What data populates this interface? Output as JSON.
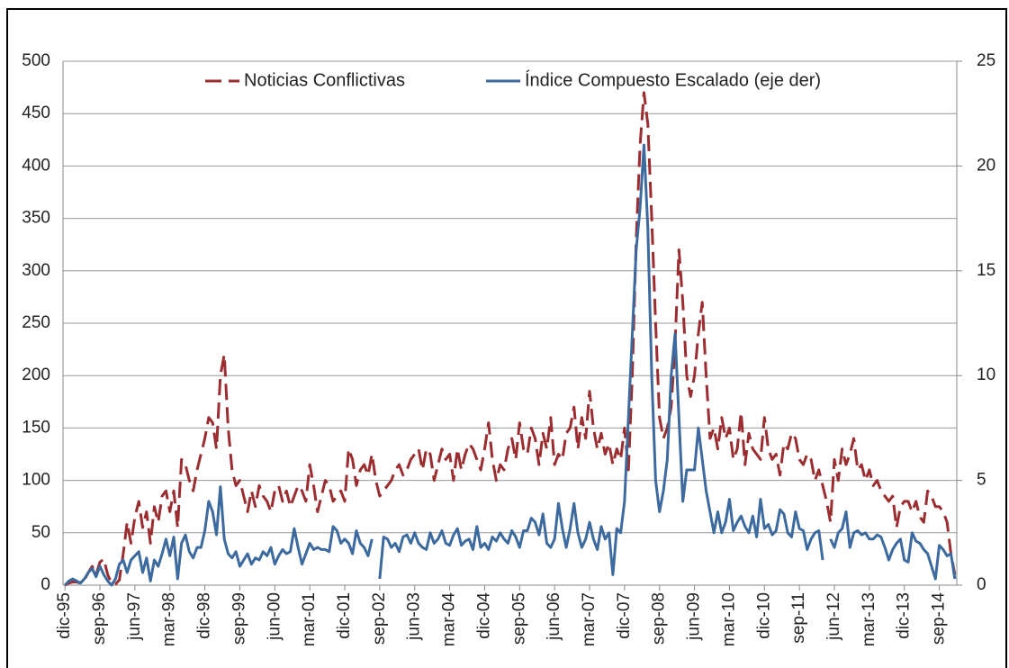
{
  "chart_data": {
    "type": "line",
    "categories": [
      "dic-95",
      null,
      null,
      null,
      null,
      null,
      null,
      null,
      null,
      "sep-96",
      null,
      null,
      null,
      null,
      null,
      null,
      null,
      null,
      "jun-97",
      null,
      null,
      null,
      null,
      null,
      null,
      null,
      null,
      "mar-98",
      null,
      null,
      null,
      null,
      null,
      null,
      null,
      null,
      "dic-98",
      null,
      null,
      null,
      null,
      null,
      null,
      null,
      null,
      "sep-99",
      null,
      null,
      null,
      null,
      null,
      null,
      null,
      null,
      "jun-00",
      null,
      null,
      null,
      null,
      null,
      null,
      null,
      null,
      "mar-01",
      null,
      null,
      null,
      null,
      null,
      null,
      null,
      null,
      "dic-01",
      null,
      null,
      null,
      null,
      null,
      null,
      null,
      null,
      "sep-02",
      null,
      null,
      null,
      null,
      null,
      null,
      null,
      null,
      "jun-03",
      null,
      null,
      null,
      null,
      null,
      null,
      null,
      null,
      "mar-04",
      null,
      null,
      null,
      null,
      null,
      null,
      null,
      null,
      "dic-04",
      null,
      null,
      null,
      null,
      null,
      null,
      null,
      null,
      "sep-05",
      null,
      null,
      null,
      null,
      null,
      null,
      null,
      null,
      "jun-06",
      null,
      null,
      null,
      null,
      null,
      null,
      null,
      null,
      "mar-07",
      null,
      null,
      null,
      null,
      null,
      null,
      null,
      null,
      "dic-07",
      null,
      null,
      null,
      null,
      null,
      null,
      null,
      null,
      "sep-08",
      null,
      null,
      null,
      null,
      null,
      null,
      null,
      null,
      "jun-09",
      null,
      null,
      null,
      null,
      null,
      null,
      null,
      null,
      "mar-10",
      null,
      null,
      null,
      null,
      null,
      null,
      null,
      null,
      "dic-10",
      null,
      null,
      null,
      null,
      null,
      null,
      null,
      null,
      "sep-11",
      null,
      null,
      null,
      null,
      null,
      null,
      null,
      null,
      "jun-12",
      null,
      null,
      null,
      null,
      null,
      null,
      null,
      null,
      "mar-13",
      null,
      null,
      null,
      null,
      null,
      null,
      null,
      null,
      "dic-13",
      null,
      null,
      null,
      null,
      null,
      null,
      null,
      null,
      "sep-14",
      null,
      null,
      null,
      null
    ],
    "series": [
      {
        "name": "Noticias Conflictivas",
        "color": "#9b2d30",
        "dashed": true,
        "values": [
          0,
          2,
          3,
          3,
          2,
          5,
          12,
          18,
          10,
          22,
          25,
          10,
          2,
          1,
          5,
          30,
          60,
          40,
          65,
          80,
          55,
          70,
          40,
          75,
          60,
          85,
          90,
          70,
          90,
          55,
          120,
          115,
          100,
          90,
          110,
          125,
          140,
          160,
          155,
          130,
          200,
          220,
          150,
          110,
          95,
          100,
          85,
          70,
          90,
          75,
          95,
          85,
          80,
          70,
          90,
          95,
          80,
          90,
          75,
          85,
          95,
          90,
          80,
          115,
          95,
          70,
          85,
          100,
          95,
          80,
          85,
          90,
          80,
          130,
          120,
          95,
          110,
          115,
          105,
          125,
          100,
          85,
          90,
          95,
          100,
          110,
          115,
          105,
          110,
          120,
          125,
          130,
          110,
          130,
          125,
          100,
          115,
          130,
          120,
          125,
          100,
          130,
          110,
          125,
          135,
          130,
          120,
          110,
          130,
          155,
          120,
          100,
          115,
          110,
          130,
          140,
          120,
          155,
          130,
          125,
          150,
          140,
          115,
          145,
          130,
          160,
          115,
          125,
          120,
          145,
          150,
          170,
          130,
          160,
          140,
          185,
          150,
          130,
          145,
          125,
          135,
          115,
          130,
          120,
          150,
          110,
          200,
          330,
          420,
          470,
          440,
          350,
          250,
          160,
          140,
          150,
          170,
          230,
          320,
          270,
          200,
          180,
          200,
          240,
          270,
          200,
          140,
          150,
          130,
          160,
          140,
          150,
          120,
          130,
          165,
          115,
          145,
          130,
          125,
          120,
          160,
          130,
          120,
          125,
          105,
          135,
          130,
          145,
          140,
          120,
          115,
          125,
          120,
          100,
          110,
          95,
          80,
          60,
          120,
          100,
          130,
          115,
          125,
          140,
          110,
          115,
          100,
          110,
          95,
          100,
          90,
          85,
          80,
          85,
          55,
          75,
          80,
          80,
          70,
          80,
          65,
          60,
          90,
          85,
          75,
          75,
          70,
          60,
          30,
          10
        ]
      },
      {
        "name": "Índice Compuesto Escalado (eje der)",
        "color": "#3d6a9e",
        "axis": "y2",
        "values": [
          0,
          0.2,
          0.3,
          0.2,
          0.1,
          0.3,
          0.6,
          0.8,
          0.4,
          0.9,
          0.5,
          0.2,
          0,
          0.3,
          1,
          1.2,
          0.6,
          1.2,
          1.4,
          1.6,
          0.6,
          1.3,
          0.2,
          1.2,
          0.9,
          1.5,
          2.2,
          1.4,
          2.3,
          0.3,
          2,
          2.4,
          1.6,
          1.3,
          1.8,
          1.8,
          2.6,
          4,
          3.5,
          2.4,
          4.7,
          2.2,
          1.5,
          1.3,
          1.6,
          0.9,
          1.2,
          1.5,
          1,
          1.3,
          1.2,
          1.6,
          1.4,
          1.8,
          1,
          1.4,
          1.7,
          1.5,
          1.6,
          2.7,
          1.8,
          1,
          1.5,
          2,
          1.7,
          1.8,
          1.7,
          1.7,
          1.6,
          2.8,
          2.6,
          2,
          2.2,
          2,
          1.5,
          2.6,
          2,
          1.8,
          1.4,
          2.2,
          null,
          0.3,
          2.3,
          2.2,
          1.8,
          2,
          1.6,
          2.3,
          2.4,
          2,
          2.5,
          2,
          1.8,
          1.7,
          2.5,
          2,
          2.2,
          2.6,
          2,
          1.9,
          2.4,
          2.7,
          1.9,
          2.1,
          2.2,
          1.7,
          2.8,
          1.8,
          2,
          1.7,
          2.3,
          2.1,
          2.5,
          2.2,
          2,
          2.6,
          2.3,
          1.8,
          2.6,
          2.6,
          3.2,
          3,
          2.4,
          3.4,
          2,
          1.8,
          2.2,
          3.9,
          2.7,
          1.8,
          2.7,
          3.9,
          2.5,
          1.8,
          2.2,
          3,
          2.2,
          1.7,
          2.8,
          2.2,
          2.5,
          0.5,
          2.7,
          2.5,
          4,
          8,
          12,
          16,
          18,
          21,
          17,
          10,
          5,
          3.5,
          4.5,
          6,
          10,
          12,
          8,
          4,
          5.5,
          5.5,
          5.5,
          7.5,
          6,
          4.5,
          3.5,
          2.5,
          3.5,
          2.5,
          3,
          4.1,
          2.6,
          3,
          3.3,
          2.8,
          2.5,
          3.3,
          2.3,
          4.1,
          2.7,
          2.9,
          2.4,
          2.6,
          3.6,
          3.4,
          2.5,
          2.3,
          3.5,
          2.7,
          2.6,
          1.7,
          2.2,
          2.5,
          2.6,
          1.2,
          null,
          2.2,
          1.8,
          2.5,
          2.7,
          3.5,
          1.8,
          2.5,
          2.6,
          2.4,
          2.5,
          2.2,
          2.2,
          2.4,
          2.3,
          1.8,
          1.2,
          1.7,
          2,
          2.2,
          1.2,
          1.1,
          2.5,
          2.1,
          2,
          1.7,
          1.5,
          0.9,
          0.3,
          1.9,
          1.7,
          1.4,
          1.5,
          0.3
        ]
      }
    ],
    "ylim": [
      0,
      500
    ],
    "yticks": [
      0,
      50,
      100,
      150,
      200,
      250,
      300,
      350,
      400,
      450,
      500
    ],
    "y2lim": [
      0,
      25
    ],
    "y2ticks": [
      0,
      5,
      10,
      15,
      20,
      25
    ],
    "grid": true,
    "legend": "top"
  }
}
